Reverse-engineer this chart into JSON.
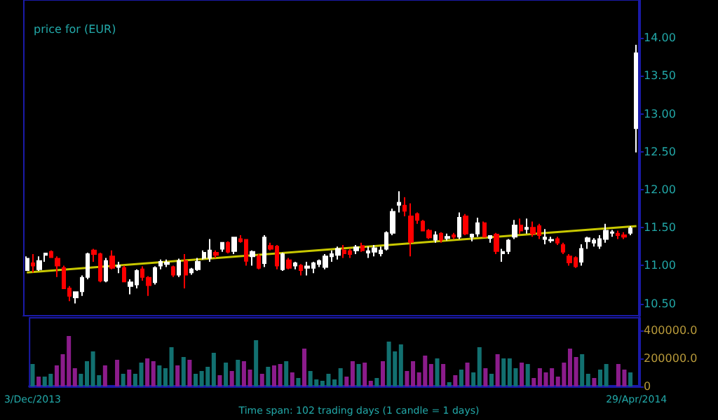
{
  "chart_data": [
    {
      "type": "candlestick",
      "title": "price for (EUR)",
      "categories": [
        null,
        null,
        null,
        null,
        null,
        null,
        null,
        null,
        null,
        null,
        null,
        null,
        null,
        null,
        null,
        null,
        null,
        null,
        null,
        null,
        null,
        null,
        null,
        null,
        null,
        null,
        null,
        null,
        null,
        null,
        null,
        null,
        null,
        null,
        null,
        null,
        null,
        null,
        null,
        null,
        null,
        null,
        null,
        null,
        null,
        null,
        null,
        null,
        null,
        null,
        null,
        null,
        null,
        null,
        null,
        null,
        null,
        null,
        null,
        null,
        null,
        null,
        null,
        null,
        null,
        null,
        null,
        null,
        null,
        null,
        null,
        null,
        null,
        null,
        null,
        null,
        null,
        null,
        null,
        null,
        null,
        null,
        null,
        null,
        null,
        null,
        null,
        null,
        null,
        null,
        null,
        null,
        null,
        null,
        null,
        null,
        null,
        null,
        null,
        null,
        null
      ],
      "ohlc": [
        [
          10.94,
          11.12,
          10.93,
          11.09
        ],
        [
          11.03,
          11.15,
          10.91,
          11.0
        ],
        [
          10.95,
          11.12,
          10.93,
          11.06
        ],
        [
          11.14,
          11.17,
          11.05,
          11.16
        ],
        [
          11.18,
          11.2,
          11.1,
          11.11
        ],
        [
          11.09,
          11.12,
          10.85,
          11.0
        ],
        [
          10.97,
          11.0,
          10.7,
          10.7
        ],
        [
          10.7,
          10.73,
          10.53,
          10.6
        ],
        [
          10.58,
          10.65,
          10.5,
          10.65
        ],
        [
          10.66,
          10.87,
          10.6,
          10.84
        ],
        [
          10.85,
          11.17,
          10.82,
          11.15
        ],
        [
          11.2,
          11.22,
          11.05,
          11.15
        ],
        [
          11.15,
          11.17,
          10.78,
          10.8
        ],
        [
          10.8,
          11.1,
          10.78,
          11.06
        ],
        [
          11.12,
          11.2,
          10.95,
          10.97
        ],
        [
          10.98,
          11.05,
          10.9,
          11.0
        ],
        [
          10.97,
          11.0,
          10.78,
          10.79
        ],
        [
          10.73,
          10.82,
          10.62,
          10.78
        ],
        [
          10.75,
          10.95,
          10.7,
          10.93
        ],
        [
          10.95,
          10.99,
          10.8,
          10.85
        ],
        [
          10.84,
          10.86,
          10.6,
          10.74
        ],
        [
          10.78,
          10.99,
          10.75,
          10.97
        ],
        [
          11.0,
          11.08,
          10.95,
          11.05
        ],
        [
          11.02,
          11.08,
          10.98,
          11.04
        ],
        [
          10.98,
          11.0,
          10.85,
          10.88
        ],
        [
          10.88,
          11.09,
          10.85,
          11.06
        ],
        [
          11.06,
          11.15,
          10.7,
          10.88
        ],
        [
          10.91,
          10.97,
          10.88,
          10.95
        ],
        [
          10.95,
          11.1,
          10.93,
          11.05
        ],
        [
          11.1,
          11.2,
          11.08,
          11.17
        ],
        [
          11.1,
          11.35,
          11.05,
          11.2
        ],
        [
          11.17,
          11.2,
          11.1,
          11.14
        ],
        [
          11.22,
          11.3,
          11.18,
          11.3
        ],
        [
          11.3,
          11.32,
          11.16,
          11.18
        ],
        [
          11.19,
          11.37,
          11.15,
          11.37
        ],
        [
          11.35,
          11.4,
          11.3,
          11.32
        ],
        [
          11.34,
          11.35,
          11.0,
          11.06
        ],
        [
          11.12,
          11.2,
          11.0,
          11.18
        ],
        [
          11.12,
          11.15,
          10.95,
          10.97
        ],
        [
          11.03,
          11.4,
          10.98,
          11.37
        ],
        [
          11.26,
          11.3,
          11.2,
          11.22
        ],
        [
          11.25,
          11.27,
          10.95,
          11.0
        ],
        [
          10.95,
          11.17,
          10.93,
          11.15
        ],
        [
          11.07,
          11.1,
          10.95,
          10.97
        ],
        [
          11.0,
          11.05,
          10.95,
          11.03
        ],
        [
          11.0,
          11.02,
          10.87,
          10.94
        ],
        [
          10.97,
          11.05,
          10.87,
          10.99
        ],
        [
          10.97,
          11.05,
          10.9,
          11.03
        ],
        [
          11.02,
          11.08,
          10.98,
          11.06
        ],
        [
          10.98,
          11.15,
          10.95,
          11.12
        ],
        [
          11.12,
          11.2,
          11.05,
          11.15
        ],
        [
          11.14,
          11.25,
          11.08,
          11.22
        ],
        [
          11.2,
          11.27,
          11.1,
          11.16
        ],
        [
          11.19,
          11.22,
          11.1,
          11.15
        ],
        [
          11.2,
          11.27,
          11.15,
          11.24
        ],
        [
          11.26,
          11.3,
          11.18,
          11.2
        ],
        [
          11.17,
          11.25,
          11.1,
          11.19
        ],
        [
          11.18,
          11.27,
          11.12,
          11.23
        ],
        [
          11.16,
          11.25,
          11.12,
          11.2
        ],
        [
          11.22,
          11.45,
          11.2,
          11.43
        ],
        [
          11.43,
          11.75,
          11.4,
          11.71
        ],
        [
          11.8,
          11.98,
          11.7,
          11.83
        ],
        [
          11.79,
          11.9,
          11.65,
          11.72
        ],
        [
          11.65,
          11.82,
          11.12,
          11.31
        ],
        [
          11.68,
          11.7,
          11.55,
          11.6
        ],
        [
          11.58,
          11.6,
          11.45,
          11.46
        ],
        [
          11.46,
          11.48,
          11.35,
          11.37
        ],
        [
          11.34,
          11.45,
          11.3,
          11.4
        ],
        [
          11.42,
          11.44,
          11.3,
          11.34
        ],
        [
          11.36,
          11.42,
          11.33,
          11.38
        ],
        [
          11.4,
          11.43,
          11.35,
          11.38
        ],
        [
          11.38,
          11.7,
          11.35,
          11.63
        ],
        [
          11.65,
          11.68,
          11.4,
          11.42
        ],
        [
          11.38,
          11.42,
          11.32,
          11.41
        ],
        [
          11.42,
          11.63,
          11.38,
          11.56
        ],
        [
          11.56,
          11.58,
          11.38,
          11.38
        ],
        [
          11.36,
          11.4,
          11.3,
          11.39
        ],
        [
          11.41,
          11.43,
          11.15,
          11.19
        ],
        [
          11.16,
          11.22,
          11.05,
          11.18
        ],
        [
          11.19,
          11.35,
          11.15,
          11.33
        ],
        [
          11.38,
          11.6,
          11.35,
          11.53
        ],
        [
          11.53,
          11.62,
          11.42,
          11.46
        ],
        [
          11.48,
          11.62,
          11.42,
          11.5
        ],
        [
          11.5,
          11.58,
          11.38,
          11.42
        ],
        [
          11.52,
          11.55,
          11.35,
          11.4
        ],
        [
          11.35,
          11.48,
          11.28,
          11.37
        ],
        [
          11.33,
          11.38,
          11.3,
          11.34
        ],
        [
          11.35,
          11.38,
          11.27,
          11.3
        ],
        [
          11.27,
          11.3,
          11.15,
          11.18
        ],
        [
          11.12,
          11.15,
          11.0,
          11.04
        ],
        [
          11.1,
          11.12,
          10.97,
          10.99
        ],
        [
          11.05,
          11.28,
          11.0,
          11.22
        ],
        [
          11.32,
          11.38,
          11.22,
          11.36
        ],
        [
          11.3,
          11.36,
          11.25,
          11.33
        ],
        [
          11.26,
          11.4,
          11.22,
          11.35
        ],
        [
          11.35,
          11.55,
          11.3,
          11.46
        ],
        [
          11.43,
          11.47,
          11.38,
          11.44
        ],
        [
          11.42,
          11.46,
          11.35,
          11.4
        ],
        [
          11.4,
          11.44,
          11.35,
          11.38
        ],
        [
          11.43,
          11.52,
          11.4,
          11.49
        ],
        [
          12.81,
          13.91,
          12.49,
          13.8
        ]
      ],
      "colors": [
        "#ffffff",
        "#ff0000",
        "#ffffff",
        "#ffffff",
        "#ff0000",
        "#ff0000",
        "#ff0000",
        "#ff0000",
        "#ffffff",
        "#ffffff",
        "#ffffff",
        "#ff0000",
        "#ff0000",
        "#ffffff",
        "#ff0000",
        "#ffffff",
        "#ff0000",
        "#ffffff",
        "#ffffff",
        "#ff0000",
        "#ff0000",
        "#ffffff",
        "#ffffff",
        "#ffffff",
        "#ff0000",
        "#ffffff",
        "#ff0000",
        "#ffffff",
        "#ffffff",
        "#ffffff",
        "#ffffff",
        "#ff0000",
        "#ffffff",
        "#ff0000",
        "#ffffff",
        "#ff0000",
        "#ff0000",
        "#ffffff",
        "#ff0000",
        "#ffffff",
        "#ff0000",
        "#ff0000",
        "#ffffff",
        "#ff0000",
        "#ffffff",
        "#ff0000",
        "#ffffff",
        "#ffffff",
        "#ffffff",
        "#ffffff",
        "#ffffff",
        "#ffffff",
        "#ff0000",
        "#ff0000",
        "#ffffff",
        "#ff0000",
        "#ffffff",
        "#ffffff",
        "#ffffff",
        "#ffffff",
        "#ffffff",
        "#ffffff",
        "#ff0000",
        "#ff0000",
        "#ff0000",
        "#ff0000",
        "#ff0000",
        "#ffffff",
        "#ff0000",
        "#ffffff",
        "#ff0000",
        "#ffffff",
        "#ff0000",
        "#ffffff",
        "#ffffff",
        "#ff0000",
        "#ffffff",
        "#ff0000",
        "#ffffff",
        "#ffffff",
        "#ffffff",
        "#ff0000",
        "#ffffff",
        "#ff0000",
        "#ff0000",
        "#ffffff",
        "#ffffff",
        "#ff0000",
        "#ff0000",
        "#ff0000",
        "#ff0000",
        "#ffffff",
        "#ffffff",
        "#ffffff",
        "#ffffff",
        "#ffffff",
        "#ffffff",
        "#ff0000",
        "#ff0000",
        "#ffffff",
        "#ffffff"
      ],
      "series": [
        {
          "type": "line",
          "color": "#c8c800",
          "values": [
            10.91,
            null,
            null,
            null,
            null,
            null,
            null,
            null,
            null,
            null,
            null,
            null,
            null,
            null,
            null,
            null,
            null,
            null,
            null,
            null,
            null,
            null,
            null,
            null,
            null,
            null,
            null,
            null,
            null,
            null,
            null,
            null,
            null,
            null,
            null,
            null,
            null,
            null,
            null,
            null,
            null,
            null,
            null,
            null,
            null,
            null,
            null,
            null,
            null,
            null,
            null,
            null,
            null,
            null,
            null,
            null,
            null,
            null,
            null,
            null,
            null,
            null,
            null,
            null,
            null,
            null,
            null,
            null,
            null,
            null,
            null,
            null,
            null,
            null,
            null,
            null,
            null,
            null,
            null,
            null,
            null,
            null,
            null,
            null,
            null,
            null,
            null,
            null,
            null,
            null,
            null,
            null,
            null,
            null,
            null,
            null,
            null,
            null,
            null,
            null,
            11.52
          ]
        }
      ],
      "ylim": [
        10.33,
        14.5
      ],
      "yticks": [
        {
          "value": 10.5,
          "label": "10.50"
        },
        {
          "value": 11,
          "label": "11.00"
        },
        {
          "value": 11.5,
          "label": "11.50"
        },
        {
          "value": 12,
          "label": "12.00"
        },
        {
          "value": 12.5,
          "label": "12.50"
        },
        {
          "value": 13,
          "label": "13.00"
        },
        {
          "value": 13.5,
          "label": "13.50"
        },
        {
          "value": 14,
          "label": "14.00"
        }
      ],
      "tick_labels": "y",
      "grid": false
    },
    {
      "type": "bar",
      "annotations": [
        "Time span: 102 trading days (1 candle = 1 days)"
      ],
      "categories": [
        "3/Dec/2013",
        null,
        null,
        null,
        null,
        null,
        null,
        null,
        null,
        null,
        null,
        null,
        null,
        null,
        null,
        null,
        null,
        null,
        null,
        null,
        null,
        null,
        null,
        null,
        null,
        null,
        null,
        null,
        null,
        null,
        null,
        null,
        null,
        null,
        null,
        null,
        null,
        null,
        null,
        null,
        null,
        null,
        null,
        null,
        null,
        null,
        null,
        null,
        null,
        null,
        null,
        null,
        null,
        null,
        null,
        null,
        null,
        null,
        null,
        null,
        null,
        null,
        null,
        null,
        null,
        null,
        null,
        null,
        null,
        null,
        null,
        null,
        null,
        null,
        null,
        null,
        null,
        null,
        null,
        null,
        null,
        null,
        null,
        null,
        null,
        null,
        null,
        null,
        null,
        null,
        null,
        null,
        null,
        null,
        null,
        null,
        null,
        null,
        null,
        null,
        "29/Apr/2014"
      ],
      "values": [
        160000,
        70000,
        70000,
        90000,
        150000,
        230000,
        360000,
        130000,
        90000,
        180000,
        250000,
        80000,
        150000,
        null,
        190000,
        90000,
        120000,
        90000,
        170000,
        200000,
        180000,
        150000,
        130000,
        280000,
        150000,
        210000,
        190000,
        90000,
        110000,
        140000,
        240000,
        80000,
        170000,
        110000,
        190000,
        180000,
        120000,
        330000,
        90000,
        140000,
        150000,
        160000,
        180000,
        100000,
        60000,
        270000,
        110000,
        50000,
        40000,
        90000,
        50000,
        130000,
        70000,
        180000,
        160000,
        170000,
        40000,
        60000,
        180000,
        320000,
        250000,
        300000,
        110000,
        180000,
        100000,
        220000,
        160000,
        200000,
        160000,
        30000,
        80000,
        120000,
        170000,
        100000,
        280000,
        130000,
        90000,
        230000,
        200000,
        200000,
        130000,
        170000,
        160000,
        60000,
        130000,
        100000,
        130000,
        70000,
        170000,
        270000,
        210000,
        230000,
        90000,
        60000,
        120000,
        160000,
        null,
        160000,
        120000,
        100000,
        null
      ],
      "colors": [
        "#127070",
        "#8b1c8b",
        "#127070",
        "#127070",
        "#8b1c8b",
        "#8b1c8b",
        "#8b1c8b",
        "#8b1c8b",
        "#127070",
        "#127070",
        "#127070",
        "#127070",
        "#8b1c8b",
        "#127070",
        "#8b1c8b",
        "#127070",
        "#8b1c8b",
        "#127070",
        "#127070",
        "#8b1c8b",
        "#8b1c8b",
        "#127070",
        "#127070",
        "#127070",
        "#8b1c8b",
        "#127070",
        "#8b1c8b",
        "#127070",
        "#127070",
        "#127070",
        "#127070",
        "#8b1c8b",
        "#127070",
        "#8b1c8b",
        "#127070",
        "#8b1c8b",
        "#8b1c8b",
        "#127070",
        "#8b1c8b",
        "#127070",
        "#8b1c8b",
        "#8b1c8b",
        "#127070",
        "#8b1c8b",
        "#127070",
        "#8b1c8b",
        "#127070",
        "#127070",
        "#127070",
        "#127070",
        "#127070",
        "#127070",
        "#8b1c8b",
        "#8b1c8b",
        "#127070",
        "#8b1c8b",
        "#8b1c8b",
        "#127070",
        "#8b1c8b",
        "#127070",
        "#127070",
        "#127070",
        "#8b1c8b",
        "#8b1c8b",
        "#8b1c8b",
        "#8b1c8b",
        "#8b1c8b",
        "#127070",
        "#8b1c8b",
        "#127070",
        "#8b1c8b",
        "#127070",
        "#8b1c8b",
        "#127070",
        "#127070",
        "#8b1c8b",
        "#127070",
        "#8b1c8b",
        "#127070",
        "#127070",
        "#127070",
        "#8b1c8b",
        "#127070",
        "#8b1c8b",
        "#8b1c8b",
        "#8b1c8b",
        "#8b1c8b",
        "#8b1c8b",
        "#8b1c8b",
        "#8b1c8b",
        "#8b1c8b",
        "#127070",
        "#127070",
        "#8b1c8b",
        "#127070",
        "#127070",
        "#127070",
        "#8b1c8b",
        "#8b1c8b",
        "#127070",
        "#127070"
      ],
      "ylim": [
        0,
        490000
      ],
      "yticks": [
        0,
        {
          "value": 200000,
          "label": "200000.0"
        },
        {
          "value": 400000,
          "label": "400000.0"
        }
      ],
      "grid": false
    }
  ]
}
